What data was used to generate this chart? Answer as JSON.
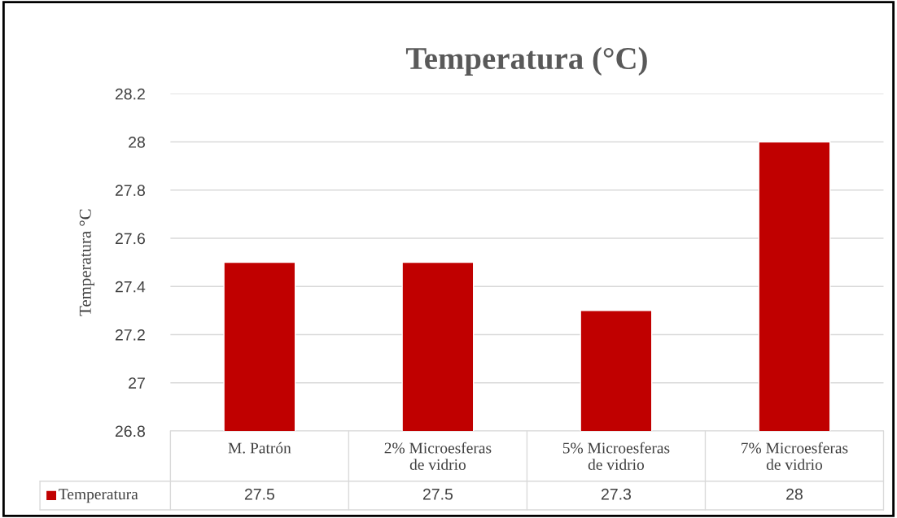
{
  "chart_data": {
    "type": "bar",
    "title": "Temperatura (°C)",
    "ylabel": "Temperatura °C",
    "categories": [
      "M. Patrón",
      "2% Microesferas\nde vidrio",
      "5% Microesferas\nde vidrio",
      "7% Microesferas\nde vidrio"
    ],
    "series": [
      {
        "name": "Temperatura",
        "color": "#c00000",
        "values": [
          27.5,
          27.5,
          27.3,
          28
        ]
      }
    ],
    "ylim": [
      26.8,
      28.2
    ],
    "yticks": [
      26.8,
      27,
      27.2,
      27.4,
      27.6,
      27.8,
      28,
      28.2
    ],
    "grid": "y",
    "data_labels": true,
    "legend": "bottom"
  }
}
